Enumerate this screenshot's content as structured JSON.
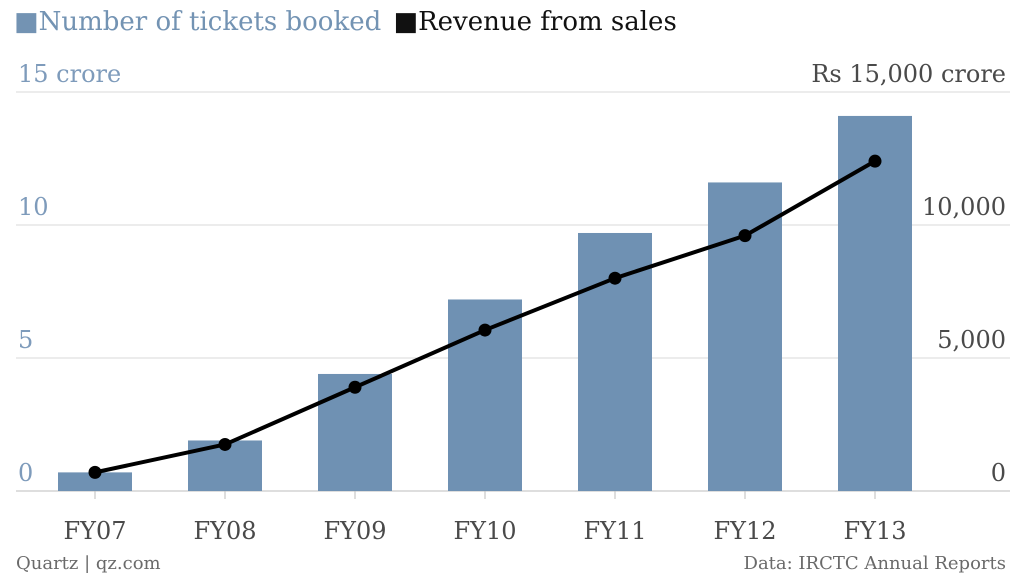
{
  "chart_data": {
    "type": "bar",
    "legend": {
      "bar_label": "Number of tickets booked",
      "line_label": "Revenue from sales",
      "bar_marker": "■",
      "line_marker": "■"
    },
    "categories": [
      "FY07",
      "FY08",
      "FY09",
      "FY10",
      "FY11",
      "FY12",
      "FY13"
    ],
    "series": [
      {
        "name": "Number of tickets booked",
        "type": "bar",
        "axis": "left",
        "values": [
          0.7,
          1.9,
          4.4,
          7.2,
          9.7,
          11.6,
          14.1
        ]
      },
      {
        "name": "Revenue from sales",
        "type": "line",
        "axis": "right",
        "values": [
          700,
          1750,
          3900,
          6050,
          8000,
          9600,
          12400
        ]
      }
    ],
    "left_axis": {
      "ticks": [
        0,
        5,
        10,
        15
      ],
      "tick_labels": [
        "0",
        "5",
        "10",
        "15 crore"
      ],
      "ylim": [
        0,
        15
      ]
    },
    "right_axis": {
      "ticks": [
        0,
        5000,
        10000,
        15000
      ],
      "tick_labels": [
        "0",
        "5,000",
        "10,000",
        "Rs 15,000 crore"
      ],
      "ylim": [
        0,
        15000
      ]
    },
    "grid": true,
    "colors": {
      "bar": "#6f91b3",
      "line": "#000000",
      "grid": "#d9d9d9",
      "left_axis_text": "#7e9bbb"
    }
  },
  "footer": {
    "source_left": "Quartz | qz.com",
    "source_right": "Data: IRCTC Annual Reports"
  }
}
